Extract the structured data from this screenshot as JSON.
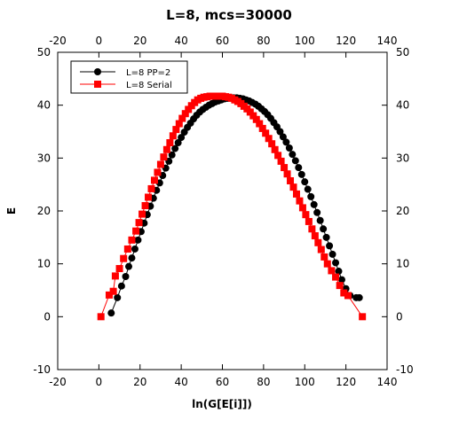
{
  "chart_data": {
    "type": "line",
    "title": "L=8, mcs=30000",
    "xlabel": "ln(G[E[i]])",
    "ylabel": "E",
    "xlim": [
      -20,
      140
    ],
    "ylim": [
      -10,
      50
    ],
    "xticks": [
      -20,
      0,
      20,
      40,
      60,
      80,
      100,
      120,
      140
    ],
    "yticks": [
      -10,
      0,
      10,
      20,
      30,
      40,
      50
    ],
    "grid": false,
    "legend_position": "top-left",
    "mirror_axes": true,
    "series": [
      {
        "name": "L=8 PP=2",
        "color": "#000000",
        "marker": "circle",
        "points": [
          [
            6,
            0.7
          ],
          [
            9,
            3.6
          ],
          [
            11,
            5.8
          ],
          [
            13,
            7.6
          ],
          [
            14.5,
            9.5
          ],
          [
            16,
            11.1
          ],
          [
            17.5,
            12.8
          ],
          [
            19,
            14.5
          ],
          [
            20.5,
            16.1
          ],
          [
            22,
            17.7
          ],
          [
            23.5,
            19.3
          ],
          [
            25,
            20.9
          ],
          [
            26.5,
            22.4
          ],
          [
            28,
            23.9
          ],
          [
            29.5,
            25.3
          ],
          [
            31,
            26.7
          ],
          [
            32.5,
            28.1
          ],
          [
            34,
            29.4
          ],
          [
            35.5,
            30.6
          ],
          [
            37,
            31.8
          ],
          [
            38.5,
            32.9
          ],
          [
            40,
            33.9
          ],
          [
            41.5,
            34.9
          ],
          [
            43,
            35.8
          ],
          [
            44.5,
            36.6
          ],
          [
            46,
            37.4
          ],
          [
            47.5,
            38.1
          ],
          [
            49,
            38.7
          ],
          [
            50.5,
            39.2
          ],
          [
            52,
            39.6
          ],
          [
            53.5,
            40.0
          ],
          [
            55,
            40.3
          ],
          [
            56.5,
            40.6
          ],
          [
            58,
            40.8
          ],
          [
            59.5,
            41.0
          ],
          [
            61,
            41.2
          ],
          [
            62.5,
            41.3
          ],
          [
            64,
            41.4
          ],
          [
            65.5,
            41.4
          ],
          [
            67,
            41.4
          ],
          [
            68.5,
            41.3
          ],
          [
            70,
            41.2
          ],
          [
            71.5,
            41.0
          ],
          [
            73,
            40.8
          ],
          [
            74.5,
            40.5
          ],
          [
            76,
            40.2
          ],
          [
            77.5,
            39.8
          ],
          [
            79,
            39.3
          ],
          [
            80.5,
            38.8
          ],
          [
            82,
            38.2
          ],
          [
            83.5,
            37.5
          ],
          [
            85,
            36.7
          ],
          [
            86.5,
            35.9
          ],
          [
            88,
            35.0
          ],
          [
            89.5,
            34.0
          ],
          [
            91,
            33.0
          ],
          [
            92.5,
            31.9
          ],
          [
            94,
            30.7
          ],
          [
            95.5,
            29.5
          ],
          [
            97,
            28.2
          ],
          [
            98.5,
            26.9
          ],
          [
            100,
            25.5
          ],
          [
            101.5,
            24.1
          ],
          [
            103,
            22.7
          ],
          [
            104.5,
            21.2
          ],
          [
            106,
            19.7
          ],
          [
            107.5,
            18.2
          ],
          [
            109,
            16.6
          ],
          [
            110.5,
            15.0
          ],
          [
            112,
            13.4
          ],
          [
            113.5,
            11.8
          ],
          [
            115,
            10.2
          ],
          [
            116.5,
            8.6
          ],
          [
            118,
            7.0
          ],
          [
            120,
            5.3
          ],
          [
            122,
            4.0
          ],
          [
            125,
            3.6
          ],
          [
            126.5,
            3.6
          ]
        ]
      },
      {
        "name": "L=8 Serial",
        "color": "#ff0000",
        "marker": "square",
        "points": [
          [
            1,
            0
          ],
          [
            5,
            4.1
          ],
          [
            7,
            4.8
          ],
          [
            8,
            7.7
          ],
          [
            10,
            9.1
          ],
          [
            12,
            11.0
          ],
          [
            14,
            12.8
          ],
          [
            16,
            14.5
          ],
          [
            18,
            16.2
          ],
          [
            19.5,
            17.8
          ],
          [
            21,
            19.4
          ],
          [
            22.5,
            21.0
          ],
          [
            24,
            22.6
          ],
          [
            25.5,
            24.2
          ],
          [
            27,
            25.8
          ],
          [
            28.5,
            27.3
          ],
          [
            30,
            28.8
          ],
          [
            31.5,
            30.2
          ],
          [
            33,
            31.6
          ],
          [
            34.5,
            32.9
          ],
          [
            36,
            34.2
          ],
          [
            37.5,
            35.4
          ],
          [
            39,
            36.5
          ],
          [
            40.5,
            37.5
          ],
          [
            42,
            38.4
          ],
          [
            43.5,
            39.2
          ],
          [
            45,
            39.9
          ],
          [
            46.5,
            40.5
          ],
          [
            48,
            41.0
          ],
          [
            49.5,
            41.3
          ],
          [
            51,
            41.5
          ],
          [
            52.5,
            41.6
          ],
          [
            54,
            41.7
          ],
          [
            55.5,
            41.7
          ],
          [
            57,
            41.7
          ],
          [
            58.5,
            41.7
          ],
          [
            60,
            41.7
          ],
          [
            61.5,
            41.6
          ],
          [
            63,
            41.5
          ],
          [
            64.5,
            41.3
          ],
          [
            66,
            41.0
          ],
          [
            67.5,
            40.7
          ],
          [
            69,
            40.3
          ],
          [
            70.5,
            39.8
          ],
          [
            72,
            39.3
          ],
          [
            73.5,
            38.7
          ],
          [
            75,
            38.0
          ],
          [
            76.5,
            37.3
          ],
          [
            78,
            36.5
          ],
          [
            79.5,
            35.6
          ],
          [
            81,
            34.7
          ],
          [
            82.5,
            33.7
          ],
          [
            84,
            32.7
          ],
          [
            85.5,
            31.6
          ],
          [
            87,
            30.5
          ],
          [
            88.5,
            29.4
          ],
          [
            90,
            28.2
          ],
          [
            91.5,
            27.0
          ],
          [
            93,
            25.7
          ],
          [
            94.5,
            24.5
          ],
          [
            96,
            23.2
          ],
          [
            97.5,
            21.9
          ],
          [
            99,
            20.6
          ],
          [
            100.5,
            19.3
          ],
          [
            102,
            18.0
          ],
          [
            103.5,
            16.6
          ],
          [
            105,
            15.3
          ],
          [
            106.5,
            14.0
          ],
          [
            108,
            12.7
          ],
          [
            109.5,
            11.3
          ],
          [
            111,
            10.0
          ],
          [
            113,
            8.7
          ],
          [
            115,
            7.5
          ],
          [
            117,
            5.9
          ],
          [
            119,
            4.5
          ],
          [
            121,
            4.0
          ],
          [
            128,
            0
          ]
        ]
      }
    ]
  }
}
